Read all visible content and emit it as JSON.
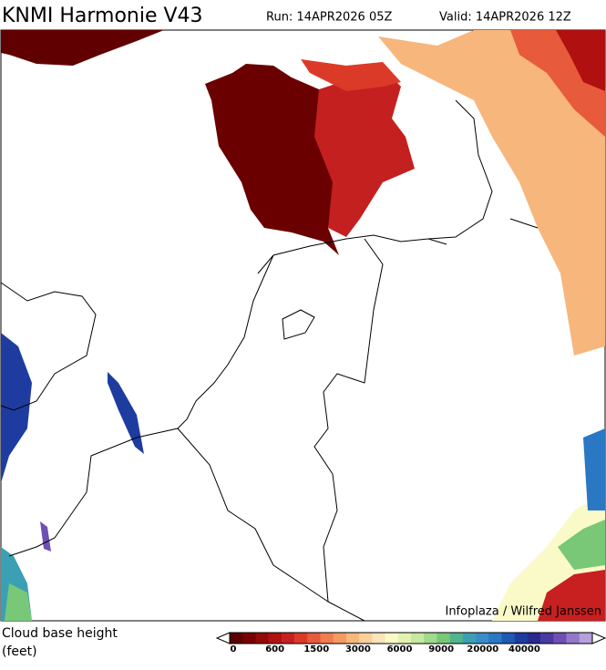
{
  "header": {
    "title": "KNMI Harmonie V43",
    "run": "Run: 14APR2026 05Z",
    "valid": "Valid: 14APR2026 12Z"
  },
  "credit": "Infoplaza / Wilfred Janssen",
  "legend": {
    "label": "Cloud base height",
    "unit": "(feet)",
    "ticks": [
      0,
      600,
      1500,
      3000,
      6000,
      9000,
      20000,
      40000
    ],
    "colors": [
      "#5a0000",
      "#780000",
      "#940808",
      "#b01010",
      "#c82020",
      "#dc3a28",
      "#e85a3c",
      "#f07c50",
      "#f59a60",
      "#f7b67c",
      "#f9d09a",
      "#fae4b8",
      "#fafac8",
      "#e4f2b0",
      "#c6e8a0",
      "#a0da8c",
      "#78c878",
      "#50b48c",
      "#3ca0b4",
      "#3a8cc8",
      "#2a78c4",
      "#1e5ab4",
      "#1e3ca0",
      "#282890",
      "#483aa0",
      "#6e50b4",
      "#9478c8",
      "#b4a0dc"
    ]
  }
}
